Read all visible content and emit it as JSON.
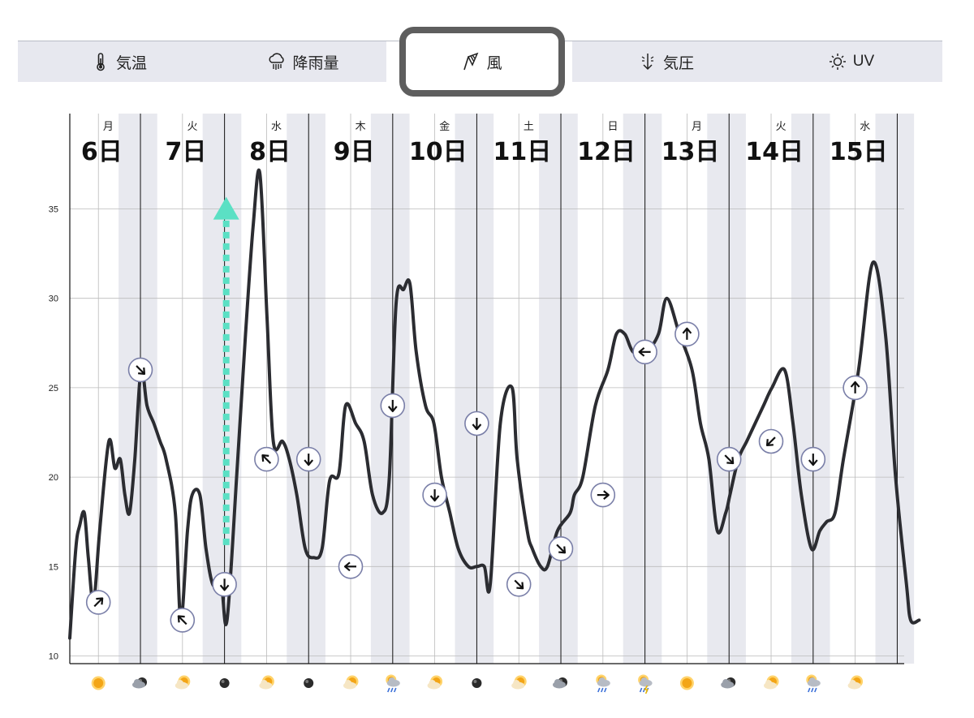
{
  "tabs": [
    {
      "label": "気温",
      "icon": "thermometer-icon",
      "active": false
    },
    {
      "label": "降雨量",
      "icon": "rain-cloud-icon",
      "active": false
    },
    {
      "label": "風",
      "icon": "windsock-icon",
      "active": true
    },
    {
      "label": "気圧",
      "icon": "pressure-arrow-icon",
      "active": false
    },
    {
      "label": "UV",
      "icon": "sun-icon",
      "active": false
    }
  ],
  "colors": {
    "line": "#2b2c31",
    "stripe": "#e8e9ef",
    "grid": "#bbbbbb",
    "arrow": "#5be0c4",
    "marker_border": "#7a7fa8",
    "tab_bg": "#e7e8ef"
  },
  "chart_data": {
    "type": "line",
    "title": "",
    "xlabel": "",
    "ylabel": "",
    "ylim": [
      9.5,
      37.5
    ],
    "yticks": [
      10,
      15,
      20,
      25,
      30,
      35
    ],
    "grid": true,
    "days": [
      {
        "weekday": "月",
        "date": "6日"
      },
      {
        "weekday": "火",
        "date": "7日"
      },
      {
        "weekday": "水",
        "date": "8日"
      },
      {
        "weekday": "木",
        "date": "9日"
      },
      {
        "weekday": "金",
        "date": "10日"
      },
      {
        "weekday": "土",
        "date": "11日"
      },
      {
        "weekday": "日",
        "date": "12日"
      },
      {
        "weekday": "月",
        "date": "13日"
      },
      {
        "weekday": "火",
        "date": "14日"
      },
      {
        "weekday": "水",
        "date": "15日"
      }
    ],
    "series": [
      {
        "points": [
          [
            0.0,
            11.0
          ],
          [
            0.071,
            16.0
          ],
          [
            0.118,
            17.3
          ],
          [
            0.173,
            18.0
          ],
          [
            0.22,
            15.5
          ],
          [
            0.283,
            13.0
          ],
          [
            0.355,
            17.0
          ],
          [
            0.464,
            22.0
          ],
          [
            0.536,
            20.5
          ],
          [
            0.6,
            21.0
          ],
          [
            0.655,
            19.0
          ],
          [
            0.71,
            18.0
          ],
          [
            0.773,
            21.0
          ],
          [
            0.847,
            26.0
          ],
          [
            0.918,
            24.0
          ],
          [
            1.0,
            23.0
          ],
          [
            1.073,
            22.0
          ],
          [
            1.145,
            21.0
          ],
          [
            1.255,
            18.0
          ],
          [
            1.32,
            12.0
          ],
          [
            1.4,
            17.0
          ],
          [
            1.455,
            19.0
          ],
          [
            1.547,
            19.0
          ],
          [
            1.62,
            16.0
          ],
          [
            1.7,
            14.0
          ],
          [
            1.8,
            14.0
          ],
          [
            1.87,
            12.0
          ],
          [
            1.99,
            20.5
          ],
          [
            2.09,
            28.0
          ],
          [
            2.18,
            34.0
          ],
          [
            2.26,
            37.0
          ],
          [
            2.345,
            29.0
          ],
          [
            2.42,
            22.0
          ],
          [
            2.53,
            22.0
          ],
          [
            2.61,
            21.0
          ],
          [
            2.7,
            19.0
          ],
          [
            2.8,
            16.0
          ],
          [
            2.9,
            15.5
          ],
          [
            3.0,
            16.0
          ],
          [
            3.09,
            19.8
          ],
          [
            3.2,
            20.2
          ],
          [
            3.28,
            24.0
          ],
          [
            3.4,
            23.0
          ],
          [
            3.5,
            22.0
          ],
          [
            3.6,
            19.0
          ],
          [
            3.72,
            18.0
          ],
          [
            3.8,
            20.0
          ],
          [
            3.88,
            29.7
          ],
          [
            3.97,
            30.5
          ],
          [
            4.045,
            30.8
          ],
          [
            4.12,
            27.0
          ],
          [
            4.23,
            24.0
          ],
          [
            4.33,
            23.0
          ],
          [
            4.42,
            20.0
          ],
          [
            4.52,
            18.0
          ],
          [
            4.62,
            16.0
          ],
          [
            4.74,
            15.0
          ],
          [
            4.84,
            15.0
          ],
          [
            4.93,
            15.0
          ],
          [
            5.0,
            14.0
          ],
          [
            5.12,
            23.0
          ],
          [
            5.26,
            25.0
          ],
          [
            5.32,
            21.0
          ],
          [
            5.44,
            17.0
          ],
          [
            5.5,
            16.0
          ],
          [
            5.6,
            15.0
          ],
          [
            5.68,
            15.0
          ],
          [
            5.8,
            17.0
          ],
          [
            5.95,
            18.0
          ],
          [
            6.0,
            19.0
          ],
          [
            6.1,
            20.0
          ],
          [
            6.25,
            24.0
          ],
          [
            6.4,
            26.0
          ],
          [
            6.5,
            28.0
          ],
          [
            6.6,
            28.0
          ],
          [
            6.7,
            27.0
          ],
          [
            6.85,
            27.0
          ],
          [
            7.0,
            28.0
          ],
          [
            7.1,
            30.0
          ],
          [
            7.25,
            28.0
          ],
          [
            7.4,
            26.0
          ],
          [
            7.5,
            23.0
          ],
          [
            7.6,
            21.0
          ],
          [
            7.7,
            17.0
          ],
          [
            7.8,
            18.0
          ],
          [
            7.85,
            19.0
          ],
          [
            7.95,
            21.0
          ],
          [
            8.05,
            22.0
          ],
          [
            8.15,
            23.0
          ],
          [
            8.25,
            24.0
          ],
          [
            8.35,
            25.0
          ],
          [
            8.5,
            26.0
          ],
          [
            8.6,
            23.0
          ],
          [
            8.7,
            19.0
          ],
          [
            8.82,
            16.0
          ],
          [
            8.92,
            17.0
          ],
          [
            9.0,
            17.5
          ],
          [
            9.1,
            18.0
          ],
          [
            9.2,
            21.0
          ],
          [
            9.38,
            26.0
          ],
          [
            9.55,
            32.0
          ],
          [
            9.7,
            28.0
          ],
          [
            9.82,
            20.0
          ],
          [
            9.95,
            14.0
          ],
          [
            10.0,
            12.0
          ],
          [
            10.1,
            12.0
          ]
        ]
      }
    ],
    "wind_markers": [
      {
        "x": 0.34,
        "y": 13,
        "dir": "NE"
      },
      {
        "x": 0.84,
        "y": 26,
        "dir": "SE"
      },
      {
        "x": 1.34,
        "y": 12,
        "dir": "NW"
      },
      {
        "x": 1.84,
        "y": 14,
        "dir": "S"
      },
      {
        "x": 2.34,
        "y": 21,
        "dir": "NW"
      },
      {
        "x": 2.84,
        "y": 21,
        "dir": "S"
      },
      {
        "x": 3.34,
        "y": 15,
        "dir": "W"
      },
      {
        "x": 3.84,
        "y": 24,
        "dir": "S"
      },
      {
        "x": 4.34,
        "y": 19,
        "dir": "S"
      },
      {
        "x": 4.84,
        "y": 23,
        "dir": "S"
      },
      {
        "x": 5.34,
        "y": 14,
        "dir": "SE"
      },
      {
        "x": 5.84,
        "y": 16,
        "dir": "SE"
      },
      {
        "x": 6.34,
        "y": 19,
        "dir": "E"
      },
      {
        "x": 6.84,
        "y": 27,
        "dir": "W"
      },
      {
        "x": 7.34,
        "y": 28,
        "dir": "N"
      },
      {
        "x": 7.84,
        "y": 21,
        "dir": "SE"
      },
      {
        "x": 8.34,
        "y": 22,
        "dir": "SW"
      },
      {
        "x": 8.84,
        "y": 21,
        "dir": "S"
      },
      {
        "x": 9.34,
        "y": 25,
        "dir": "N"
      }
    ],
    "weather_icons": [
      "sun",
      "cloud-moon",
      "sun-cloud",
      "moon",
      "sun-cloud",
      "moon",
      "sun-cloud",
      "rain",
      "sun-cloud",
      "moon",
      "sun-cloud",
      "cloud-moon",
      "rain",
      "storm",
      "sun",
      "cloud-moon",
      "sun-cloud",
      "rain",
      "sun-cloud"
    ],
    "highlight_arrow": {
      "x": 1.86,
      "y_from": 16.2,
      "y_to": 35.4
    }
  }
}
